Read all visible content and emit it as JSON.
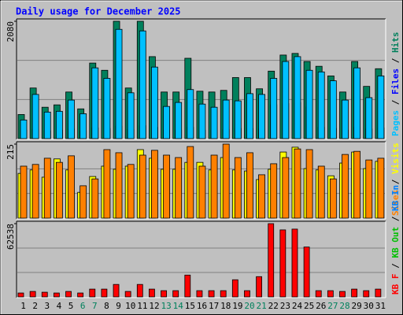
{
  "chart_data": {
    "type": "bar",
    "title": "Daily usage for December 2025",
    "categories": [
      "1",
      "2",
      "3",
      "4",
      "5",
      "6",
      "7",
      "8",
      "9",
      "10",
      "11",
      "12",
      "13",
      "14",
      "15",
      "16",
      "17",
      "18",
      "19",
      "20",
      "21",
      "22",
      "23",
      "24",
      "25",
      "26",
      "27",
      "28",
      "29",
      "30",
      "31"
    ],
    "label_colors": [
      "#000000",
      "#000000",
      "#000000",
      "#000000",
      "#000000",
      "#00805c",
      "#00805c",
      "#000000",
      "#000000",
      "#000000",
      "#000000",
      "#000000",
      "#00805c",
      "#00805c",
      "#000000",
      "#000000",
      "#000000",
      "#000000",
      "#000000",
      "#00805c",
      "#00805c",
      "#000000",
      "#000000",
      "#000000",
      "#000000",
      "#000000",
      "#00805c",
      "#00805c",
      "#000000",
      "#000000",
      "#000000"
    ],
    "legend_separator": " / ",
    "panels": [
      {
        "ylim": [
          0,
          2080
        ],
        "yticks": [
          2080
        ],
        "legend_order": [
          2,
          1,
          0
        ],
        "series": [
          {
            "name": "Hits",
            "color": "#00805c",
            "values": [
              427,
              897,
              556,
              598,
              826,
              527,
              1339,
              1211,
              2080,
              897,
              2080,
              1453,
              826,
              826,
              1424,
              840,
              826,
              855,
              1082,
              1082,
              883,
              1196,
              1481,
              1510,
              1367,
              1282,
              1111,
              826,
              1367,
              926,
              1239
            ]
          },
          {
            "name": "Files",
            "color": "#0000ff",
            "values": [
              150,
              160,
              140,
              150,
              170,
              140,
              190,
              180,
              220,
              160,
              230,
              200,
              150,
              150,
              200,
              150,
              150,
              160,
              180,
              180,
              170,
              600,
              620,
              640,
              560,
              200,
              180,
              150,
              200,
              170,
              190
            ]
          },
          {
            "name": "Pages",
            "color": "#00c0ff",
            "values": [
              330,
              783,
              470,
              484,
              683,
              441,
              1254,
              1068,
              1937,
              812,
              1909,
              1268,
              570,
              641,
              869,
              612,
              556,
              683,
              669,
              797,
              783,
              1068,
              1367,
              1453,
              1211,
              1182,
              1025,
              683,
              1254,
              726,
              1111
            ]
          }
        ]
      },
      {
        "ylim": [
          0,
          215
        ],
        "yticks": [
          215
        ],
        "legend_order": [
          1,
          0
        ],
        "series": [
          {
            "name": "Visits",
            "color": "#ffff00",
            "values": [
              130,
              140,
              119,
              172,
              140,
              75,
              121,
              151,
              142,
              151,
              199,
              174,
              142,
              142,
              162,
              162,
              140,
              176,
              140,
              137,
              112,
              142,
              192,
              206,
              144,
              140,
              123,
              160,
              192,
              144,
              165
            ]
          },
          {
            "name": "Sites",
            "color": "#ff8000",
            "values": [
              151,
              156,
              174,
              162,
              181,
              94,
              114,
              199,
              190,
              156,
              183,
              197,
              183,
              176,
              208,
              151,
              183,
              215,
              176,
              190,
              126,
              158,
              176,
              201,
              199,
              151,
              114,
              185,
              194,
              169,
              174
            ]
          }
        ]
      },
      {
        "ylim": [
          0,
          62538
        ],
        "yticks": [
          62538
        ],
        "legend_order": [
          2,
          1,
          0
        ],
        "series": [
          {
            "name": "KB In",
            "color": "#0080ff"
          },
          {
            "name": "KB Out",
            "color": "#00c000"
          },
          {
            "name": "KB F",
            "color": "#ff0000",
            "values": [
              3326,
              4657,
              3992,
              3326,
              4657,
              3326,
              6653,
              6653,
              10645,
              4657,
              10645,
              6653,
              5322,
              5322,
              18628,
              5322,
              5322,
              5322,
              14637,
              5322,
              17298,
              62538,
              57215,
              57880,
              42578,
              5322,
              5322,
              4657,
              6653,
              5322,
              6653
            ]
          }
        ]
      }
    ]
  }
}
